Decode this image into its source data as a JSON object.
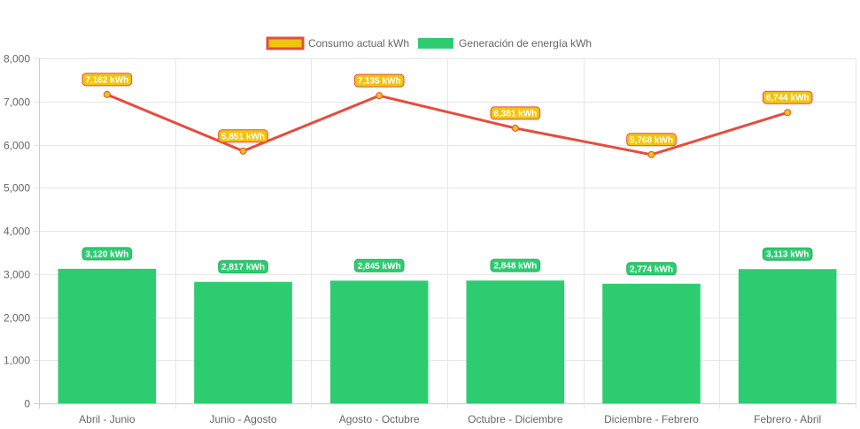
{
  "chart_data": {
    "type": "bar",
    "categories": [
      "Abril - Junio",
      "Junio - Agosto",
      "Agosto - Octubre",
      "Octubre - Diciembre",
      "Diciembre - Febrero",
      "Febrero - Abril"
    ],
    "series": [
      {
        "name": "Consumo actual kWh",
        "type": "line",
        "values": [
          7162,
          5851,
          7135,
          6381,
          5768,
          6744
        ],
        "labels": [
          "7,162 kWh",
          "5,851 kWh",
          "7,135 kWh",
          "6,381 kWh",
          "5,768 kWh",
          "6,744 kWh"
        ],
        "color": "#e74c3c",
        "fill": "#f1c40f"
      },
      {
        "name": "Generación de energía kWh",
        "type": "bar",
        "values": [
          3120,
          2817,
          2845,
          2848,
          2774,
          3113
        ],
        "labels": [
          "3,120 kWh",
          "2,817 kWh",
          "2,845 kWh",
          "2,848 kWh",
          "2,774 kWh",
          "3,113 kWh"
        ],
        "color": "#2ecc71"
      }
    ],
    "yticks": [
      "0",
      "1,000",
      "2,000",
      "3,000",
      "4,000",
      "5,000",
      "6,000",
      "7,000",
      "8,000"
    ],
    "ylim": [
      0,
      8000
    ],
    "grid": true,
    "legend": "top-center"
  }
}
